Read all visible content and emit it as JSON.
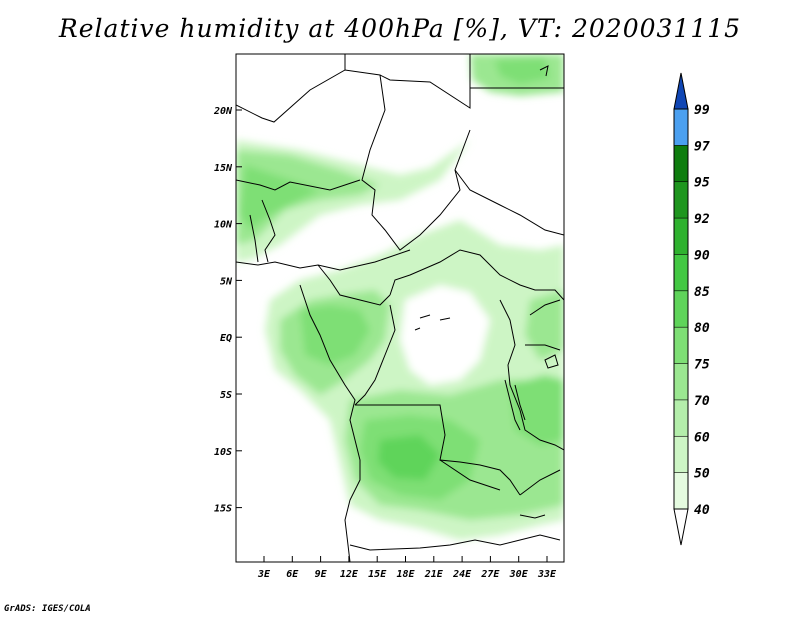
{
  "title": "Relative humidity at 400hPa [%], VT: 2020031115",
  "lat_ticks": [
    "20N",
    "15N",
    "10N",
    "5N",
    "EQ",
    "5S",
    "10S",
    "15S"
  ],
  "lon_ticks": [
    "3E",
    "6E",
    "9E",
    "12E",
    "15E",
    "18E",
    "21E",
    "24E",
    "27E",
    "30E",
    "33E"
  ],
  "colorbar": {
    "levels": [
      "40",
      "50",
      "60",
      "70",
      "75",
      "80",
      "85",
      "90",
      "92",
      "95",
      "97",
      "99"
    ],
    "colors": [
      "#ffffff",
      "#e5fbe0",
      "#cdf5c5",
      "#b4eeab",
      "#9be791",
      "#7edf75",
      "#5fd45a",
      "#43c843",
      "#2fb22f",
      "#1f961f",
      "#0e7d0e",
      "#4ba0f0",
      "#2272dd",
      "#1046b4"
    ]
  },
  "credit": "GrADS: IGES/COLA"
}
